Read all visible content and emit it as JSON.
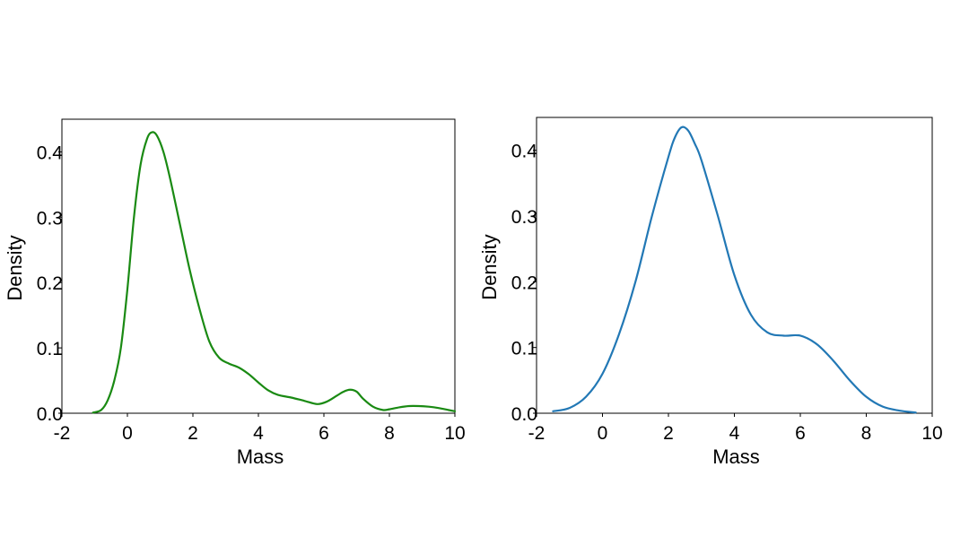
{
  "chart_data": [
    {
      "type": "line",
      "xlabel": "Mass",
      "ylabel": "Density",
      "xlim": [
        -2,
        10
      ],
      "ylim": [
        0,
        0.45
      ],
      "xticks": [
        "-2",
        "0",
        "2",
        "4",
        "6",
        "8",
        "10"
      ],
      "yticks": [
        "0.0",
        "0.1",
        "0.2",
        "0.3",
        "0.4"
      ],
      "grid": false,
      "series": [
        {
          "color": "#1a8a13",
          "x": [
            -1.05,
            -0.8,
            -0.6,
            -0.4,
            -0.2,
            0.0,
            0.2,
            0.4,
            0.6,
            0.75,
            0.9,
            1.1,
            1.3,
            1.6,
            1.9,
            2.2,
            2.5,
            2.8,
            3.1,
            3.4,
            3.7,
            4.0,
            4.3,
            4.6,
            5.0,
            5.4,
            5.8,
            6.1,
            6.4,
            6.6,
            6.8,
            7.0,
            7.2,
            7.5,
            7.8,
            8.0,
            8.3,
            8.6,
            8.9,
            9.2,
            9.5,
            9.8,
            10.0
          ],
          "y": [
            0.001,
            0.005,
            0.02,
            0.05,
            0.1,
            0.19,
            0.3,
            0.38,
            0.42,
            0.43,
            0.425,
            0.4,
            0.36,
            0.29,
            0.22,
            0.16,
            0.11,
            0.085,
            0.076,
            0.07,
            0.06,
            0.047,
            0.035,
            0.028,
            0.024,
            0.019,
            0.014,
            0.018,
            0.027,
            0.033,
            0.036,
            0.033,
            0.022,
            0.01,
            0.005,
            0.006,
            0.009,
            0.011,
            0.011,
            0.01,
            0.008,
            0.005,
            0.003
          ]
        }
      ]
    },
    {
      "type": "line",
      "xlabel": "Mass",
      "ylabel": "Density",
      "xlim": [
        -2,
        10
      ],
      "ylim": [
        0,
        0.45
      ],
      "xticks": [
        "-2",
        "0",
        "2",
        "4",
        "6",
        "8",
        "10"
      ],
      "yticks": [
        "0.0",
        "0.1",
        "0.2",
        "0.3",
        "0.4"
      ],
      "grid": false,
      "series": [
        {
          "color": "#2278b5",
          "x": [
            -1.5,
            -1.0,
            -0.5,
            0.0,
            0.5,
            1.0,
            1.5,
            2.0,
            2.2,
            2.4,
            2.6,
            2.8,
            3.0,
            3.5,
            4.0,
            4.5,
            5.0,
            5.5,
            6.0,
            6.5,
            7.0,
            7.5,
            8.0,
            8.5,
            9.0,
            9.5
          ],
          "y": [
            0.003,
            0.008,
            0.025,
            0.06,
            0.12,
            0.2,
            0.3,
            0.39,
            0.42,
            0.435,
            0.43,
            0.41,
            0.385,
            0.3,
            0.21,
            0.15,
            0.123,
            0.118,
            0.118,
            0.105,
            0.08,
            0.05,
            0.025,
            0.01,
            0.004,
            0.001
          ]
        }
      ]
    }
  ]
}
